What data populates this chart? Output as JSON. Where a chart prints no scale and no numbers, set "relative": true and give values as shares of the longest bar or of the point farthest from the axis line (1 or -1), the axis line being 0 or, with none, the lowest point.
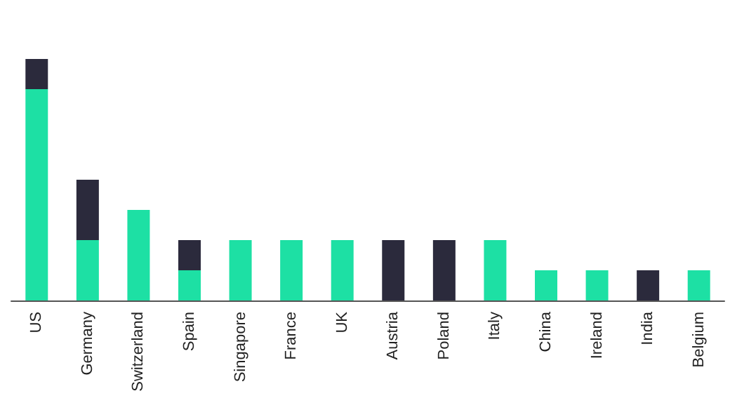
{
  "chart_data": {
    "type": "bar",
    "relative": true,
    "stacked": true,
    "categories": [
      "US",
      "Germany",
      "Switzerland",
      "Spain",
      "Singapore",
      "France",
      "UK",
      "Austria",
      "Poland",
      "Italy",
      "China",
      "Ireland",
      "India",
      "Belgium"
    ],
    "series": [
      {
        "color": "#1de0a4",
        "values": [
          0.875,
          0.25,
          0.375,
          0.125,
          0.25,
          0.25,
          0.25,
          0,
          0,
          0.25,
          0.125,
          0.125,
          0,
          0.125
        ]
      },
      {
        "color": "#2b2a3c",
        "values": [
          0.125,
          0.25,
          0,
          0.125,
          0,
          0,
          0,
          0.25,
          0.25,
          0,
          0,
          0,
          0.125,
          0
        ]
      }
    ]
  }
}
